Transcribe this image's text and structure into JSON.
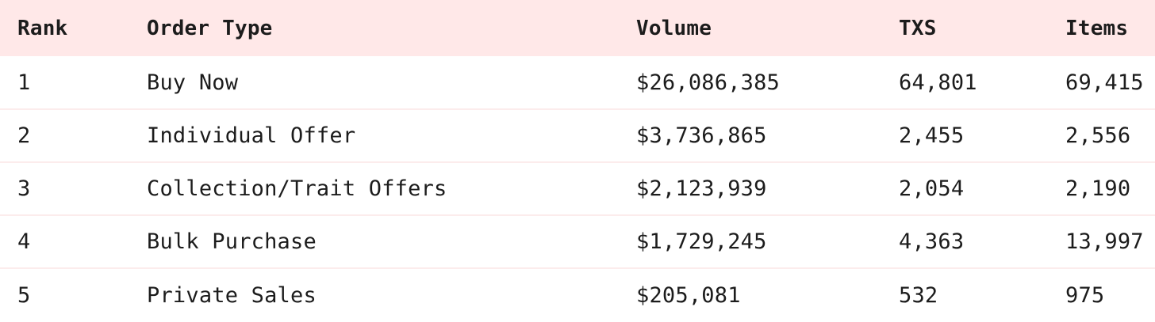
{
  "table": {
    "headers": {
      "rank": "Rank",
      "order_type": "Order Type",
      "volume": "Volume",
      "txs": "TXS",
      "items": "Items"
    },
    "rows": [
      {
        "rank": "1",
        "order_type": "Buy Now",
        "volume": "$26,086,385",
        "txs": "64,801",
        "items": "69,415"
      },
      {
        "rank": "2",
        "order_type": "Individual Offer",
        "volume": "$3,736,865",
        "txs": "2,455",
        "items": "2,556"
      },
      {
        "rank": "3",
        "order_type": "Collection/Trait Offers",
        "volume": "$2,123,939",
        "txs": "2,054",
        "items": "2,190"
      },
      {
        "rank": "4",
        "order_type": "Bulk Purchase",
        "volume": "$1,729,245",
        "txs": "4,363",
        "items": "13,997"
      },
      {
        "rank": "5",
        "order_type": "Private Sales",
        "volume": "$205,081",
        "txs": "532",
        "items": "975"
      }
    ]
  },
  "colors": {
    "header_background": "#ffe8e8",
    "row_divider": "#fcecec",
    "text": "#1c1c1c"
  }
}
